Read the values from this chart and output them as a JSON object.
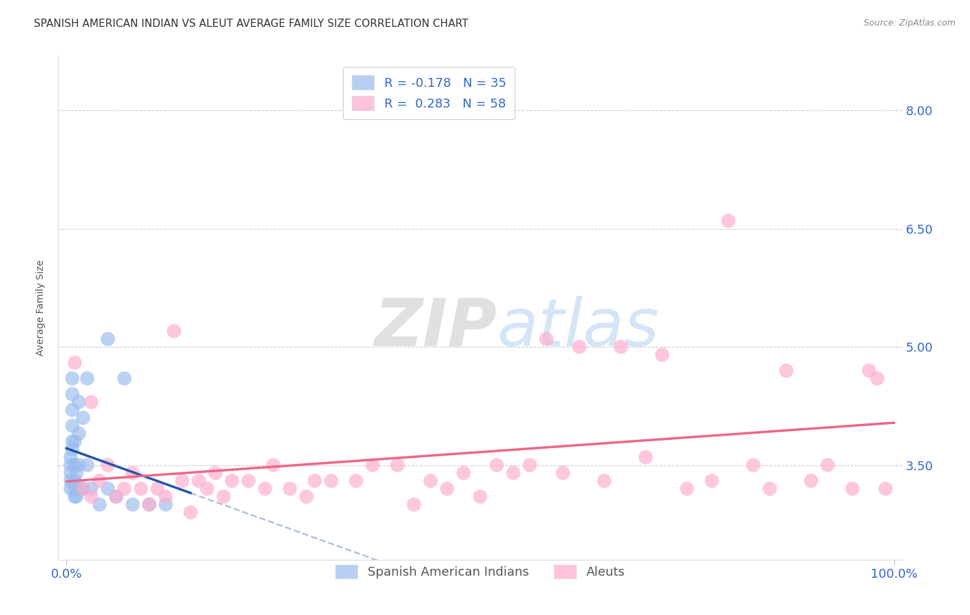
{
  "title": "SPANISH AMERICAN INDIAN VS ALEUT AVERAGE FAMILY SIZE CORRELATION CHART",
  "source": "Source: ZipAtlas.com",
  "ylabel": "Average Family Size",
  "xlim": [
    -1,
    101
  ],
  "ylim": [
    2.3,
    8.7
  ],
  "yticks": [
    3.5,
    5.0,
    6.5,
    8.0
  ],
  "xticks": [
    0,
    100
  ],
  "xticklabels": [
    "0.0%",
    "100.0%"
  ],
  "yticklabels": [
    "3.50",
    "5.00",
    "6.50",
    "8.00"
  ],
  "grid_color": "#cccccc",
  "background_color": "#ffffff",
  "blue_color": "#99bbee",
  "pink_color": "#ffaacc",
  "blue_line_color": "#2255aa",
  "pink_line_color": "#ee6688",
  "blue_dashed_color": "#aabbdd",
  "legend_label_blue": "R = -0.178   N = 35",
  "legend_label_pink": "R =  0.283   N = 58",
  "legend_label_blue_series": "Spanish American Indians",
  "legend_label_pink_series": "Aleuts",
  "watermark_zip": "ZIP",
  "watermark_atlas": "atlas",
  "title_fontsize": 11,
  "axis_label_fontsize": 10,
  "tick_fontsize": 13,
  "legend_fontsize": 13,
  "blue_scatter_x": [
    0.5,
    0.5,
    0.5,
    0.5,
    0.5,
    0.7,
    0.7,
    0.7,
    0.7,
    0.7,
    0.7,
    1.0,
    1.0,
    1.0,
    1.0,
    1.0,
    1.2,
    1.2,
    1.5,
    1.5,
    1.5,
    1.5,
    2.0,
    2.0,
    2.5,
    2.5,
    3.0,
    4.0,
    5.0,
    5.0,
    6.0,
    7.0,
    8.0,
    10.0,
    12.0
  ],
  "blue_scatter_y": [
    3.2,
    3.3,
    3.4,
    3.5,
    3.6,
    3.7,
    3.8,
    4.0,
    4.2,
    4.4,
    4.6,
    3.1,
    3.2,
    3.3,
    3.5,
    3.8,
    3.1,
    3.4,
    3.2,
    3.5,
    3.9,
    4.3,
    3.2,
    4.1,
    3.5,
    4.6,
    3.2,
    3.0,
    3.2,
    5.1,
    3.1,
    4.6,
    3.0,
    3.0,
    3.0
  ],
  "pink_scatter_x": [
    1,
    2,
    3,
    3,
    4,
    5,
    6,
    7,
    8,
    9,
    10,
    11,
    12,
    13,
    14,
    15,
    16,
    17,
    18,
    19,
    20,
    22,
    24,
    25,
    27,
    29,
    30,
    32,
    35,
    37,
    40,
    42,
    44,
    46,
    48,
    50,
    52,
    54,
    56,
    58,
    60,
    62,
    65,
    67,
    70,
    72,
    75,
    78,
    80,
    83,
    85,
    87,
    90,
    92,
    95,
    97,
    98,
    99
  ],
  "pink_scatter_y": [
    4.8,
    3.2,
    3.1,
    4.3,
    3.3,
    3.5,
    3.1,
    3.2,
    3.4,
    3.2,
    3.0,
    3.2,
    3.1,
    5.2,
    3.3,
    2.9,
    3.3,
    3.2,
    3.4,
    3.1,
    3.3,
    3.3,
    3.2,
    3.5,
    3.2,
    3.1,
    3.3,
    3.3,
    3.3,
    3.5,
    3.5,
    3.0,
    3.3,
    3.2,
    3.4,
    3.1,
    3.5,
    3.4,
    3.5,
    5.1,
    3.4,
    5.0,
    3.3,
    5.0,
    3.6,
    4.9,
    3.2,
    3.3,
    6.6,
    3.5,
    3.2,
    4.7,
    3.3,
    3.5,
    3.2,
    4.7,
    4.6,
    3.2
  ]
}
